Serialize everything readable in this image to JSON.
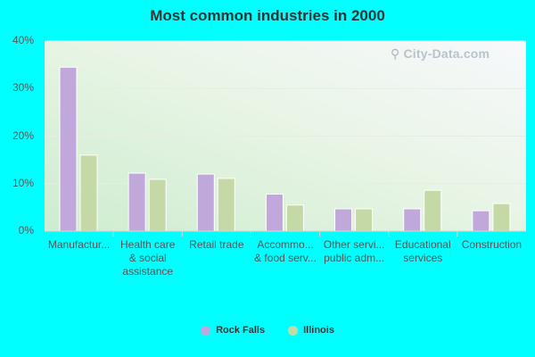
{
  "chart_data": {
    "type": "bar",
    "title": "Most common industries in 2000",
    "categories": [
      [
        "Manufactur..."
      ],
      [
        "Health care",
        "& social",
        "assistance"
      ],
      [
        "Retail trade"
      ],
      [
        "Accommo...",
        "& food serv..."
      ],
      [
        "Other servi...",
        "public adm..."
      ],
      [
        "Educational",
        "services"
      ],
      [
        "Construction"
      ]
    ],
    "series": [
      {
        "name": "Rock Falls",
        "color": "#C0A8DA",
        "values": [
          34.5,
          12.2,
          12.0,
          7.8,
          4.7,
          4.7,
          4.3
        ]
      },
      {
        "name": "Illinois",
        "color": "#C5D9A6",
        "values": [
          16.0,
          10.9,
          11.1,
          5.5,
          4.7,
          8.6,
          5.8
        ]
      }
    ],
    "y_ticks": [
      "0%",
      "10%",
      "20%",
      "30%",
      "40%"
    ],
    "ylim": [
      0,
      40
    ],
    "grid": true,
    "legend_position": "bottom"
  },
  "watermark": {
    "text": "City-Data.com",
    "icon": "magnifier-icon"
  }
}
